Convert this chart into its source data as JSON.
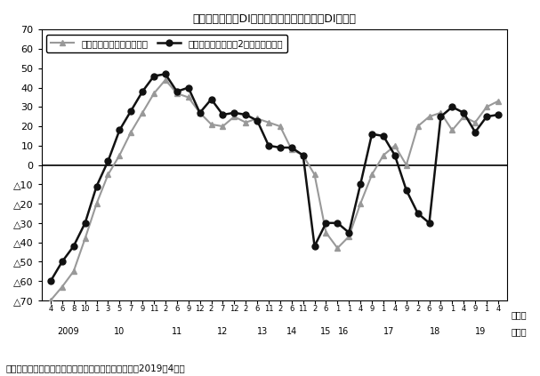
{
  "title": "図　自社の景況DIと２カ月後の景況見通しDIの推移",
  "legend1": "自社の景況（最近の状況）",
  "legend2": "自社の景況見通し（2カ月後の状況）",
  "source": "（出所）ジェトロ「在ロシア日系企業景況感調査」（2019年4月）",
  "x_month_labels": [
    "4",
    "6",
    "8",
    "10",
    "1",
    "3",
    "5",
    "7",
    "9",
    "11",
    "2",
    "6",
    "9",
    "12",
    "2",
    "7",
    "12",
    "2",
    "6",
    "11",
    "2",
    "6",
    "11",
    "2",
    "6",
    "1",
    "1",
    "4",
    "9",
    "1",
    "4",
    "9",
    "2",
    "6",
    "9",
    "1",
    "4",
    "9",
    "1",
    "4"
  ],
  "x_year_labels": [
    "2009",
    "10",
    "11",
    "12",
    "13",
    "14",
    "15",
    "16",
    "17",
    "18",
    "19"
  ],
  "year_positions": [
    1.5,
    6.0,
    11.0,
    15.0,
    18.5,
    21.0,
    24.0,
    25.5,
    29.5,
    33.5,
    37.5
  ],
  "month_label": "（月）",
  "year_label": "（年）",
  "ylim": [
    -70,
    70
  ],
  "series1_color": "#999999",
  "series2_color": "#111111",
  "background_color": "#ffffff",
  "series1": [
    -70,
    -63,
    -55,
    -38,
    -20,
    -5,
    5,
    17,
    27,
    37,
    44,
    37,
    35,
    27,
    21,
    20,
    25,
    22,
    24,
    22,
    20,
    8,
    5,
    -5,
    -35,
    -43,
    -37,
    -20,
    -5,
    5,
    10,
    0,
    20,
    25,
    27,
    18,
    25,
    22,
    30,
    33
  ],
  "series2": [
    -60,
    -50,
    -42,
    -30,
    -11,
    2,
    18,
    28,
    38,
    46,
    47,
    38,
    40,
    27,
    34,
    26,
    27,
    26,
    23,
    10,
    9,
    9,
    5,
    -42,
    -30,
    -30,
    -35,
    -10,
    16,
    15,
    5,
    -13,
    -25,
    -30,
    25,
    30,
    27,
    17,
    25,
    26
  ],
  "n_points": 40
}
